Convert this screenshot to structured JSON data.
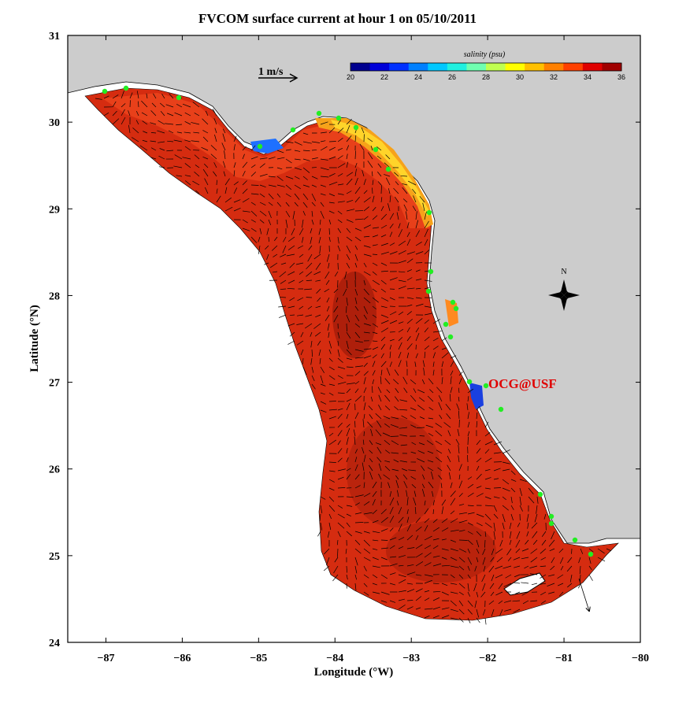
{
  "title": "FVCOM surface current at hour 1 on 05/10/2011",
  "axes": {
    "xlabel": "Longitude (°W)",
    "ylabel": "Latitude (°N)",
    "x_ticks": [
      "-87",
      "-86",
      "-85",
      "-84",
      "-83",
      "-82",
      "-81",
      "-80"
    ],
    "y_ticks": [
      "31",
      "30",
      "29",
      "28",
      "27",
      "26",
      "25",
      "24"
    ],
    "xlim": [
      -87.5,
      -80
    ],
    "ylim": [
      24,
      31
    ]
  },
  "colorbar": {
    "title": "salinity (psu)",
    "ticks": [
      "20",
      "22",
      "24",
      "26",
      "28",
      "30",
      "32",
      "34",
      "36"
    ],
    "colors": [
      "#00008f",
      "#0000d8",
      "#0030ff",
      "#0080ff",
      "#00c8ff",
      "#20f0e0",
      "#70ffb0",
      "#c0ff50",
      "#ffff00",
      "#ffc000",
      "#ff8000",
      "#ff4000",
      "#e00000",
      "#a00000"
    ]
  },
  "scale_arrow": {
    "label": "1 m/s"
  },
  "compass": {
    "label": "N"
  },
  "brand": "OCG@USF",
  "colors": {
    "land": "#cccccc",
    "ocean_deep": "#b01a0a",
    "ocean_mid": "#d52c10",
    "ocean_shelf": "#e8401a",
    "stations": "#22ee22",
    "brand": "#e00000"
  }
}
